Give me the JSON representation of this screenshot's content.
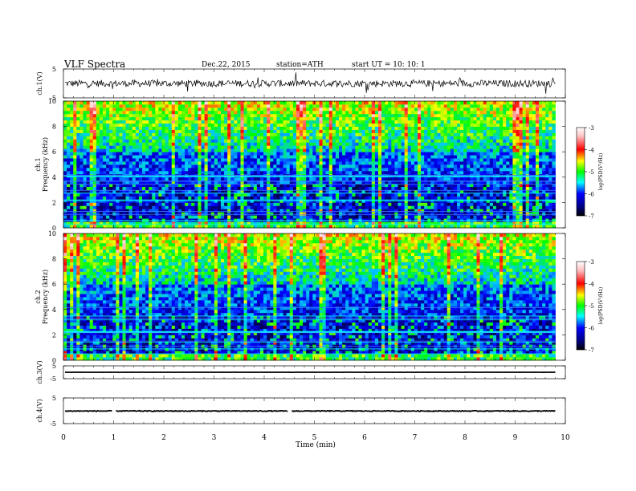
{
  "header": {
    "title": "VLF  Spectra",
    "date": "Dec.22, 2015",
    "station": "station=ATH",
    "start": "start  UT  =    10: 10: 1"
  },
  "chart_data": {
    "type": "heatmap",
    "title": "VLF  Spectra",
    "xlabel": "Time  (min)",
    "xlim": [
      0,
      10
    ],
    "x_ticks": [
      "0",
      "1",
      "2",
      "3",
      "4",
      "5",
      "6",
      "7",
      "8",
      "9",
      "10"
    ],
    "data_end_min": 9.8,
    "panels": [
      {
        "kind": "waveform",
        "ylabel": "ch.1(V)",
        "ylim": [
          -5,
          5
        ],
        "y_ticks": [
          "5",
          "-5"
        ],
        "baseline": 0,
        "noise": 1.2,
        "color": "#000000"
      },
      {
        "kind": "spectrogram",
        "ylabel_top": "ch.1",
        "ylabel": "Frequency  (kHz)",
        "ylim": [
          0,
          10
        ],
        "y_ticks": [
          "0",
          "2",
          "4",
          "6",
          "8",
          "10"
        ]
      },
      {
        "kind": "spectrogram",
        "ylabel_top": "ch.2",
        "ylabel": "Frequency  (kHz)",
        "ylim": [
          0,
          10
        ],
        "y_ticks": [
          "0",
          "2",
          "4",
          "6",
          "8",
          "10"
        ]
      },
      {
        "kind": "waveform",
        "ylabel": "ch.3(V)",
        "ylim": [
          -5,
          5
        ],
        "y_ticks": [
          "5",
          "-5"
        ],
        "baseline": 0,
        "noise": 0.05,
        "color": "#000000"
      },
      {
        "kind": "waveform",
        "ylabel": "ch.4(V)",
        "ylim": [
          -5,
          5
        ],
        "y_ticks": [
          "5",
          "-5"
        ],
        "baseline": -0.1,
        "noise": 0.15,
        "color": "#000000",
        "gaps_min": [
          1.0,
          4.5
        ]
      }
    ],
    "colorbar": {
      "label": "log(PSD(V²/Hz)",
      "range": [
        -7,
        -3
      ],
      "ticks": [
        "-3",
        "-4",
        "-5",
        "-6",
        "-7"
      ],
      "colors": [
        "#ffffff",
        "#ff0000",
        "#ffff00",
        "#00ff00",
        "#00ffff",
        "#0000ff",
        "#000000"
      ]
    }
  }
}
